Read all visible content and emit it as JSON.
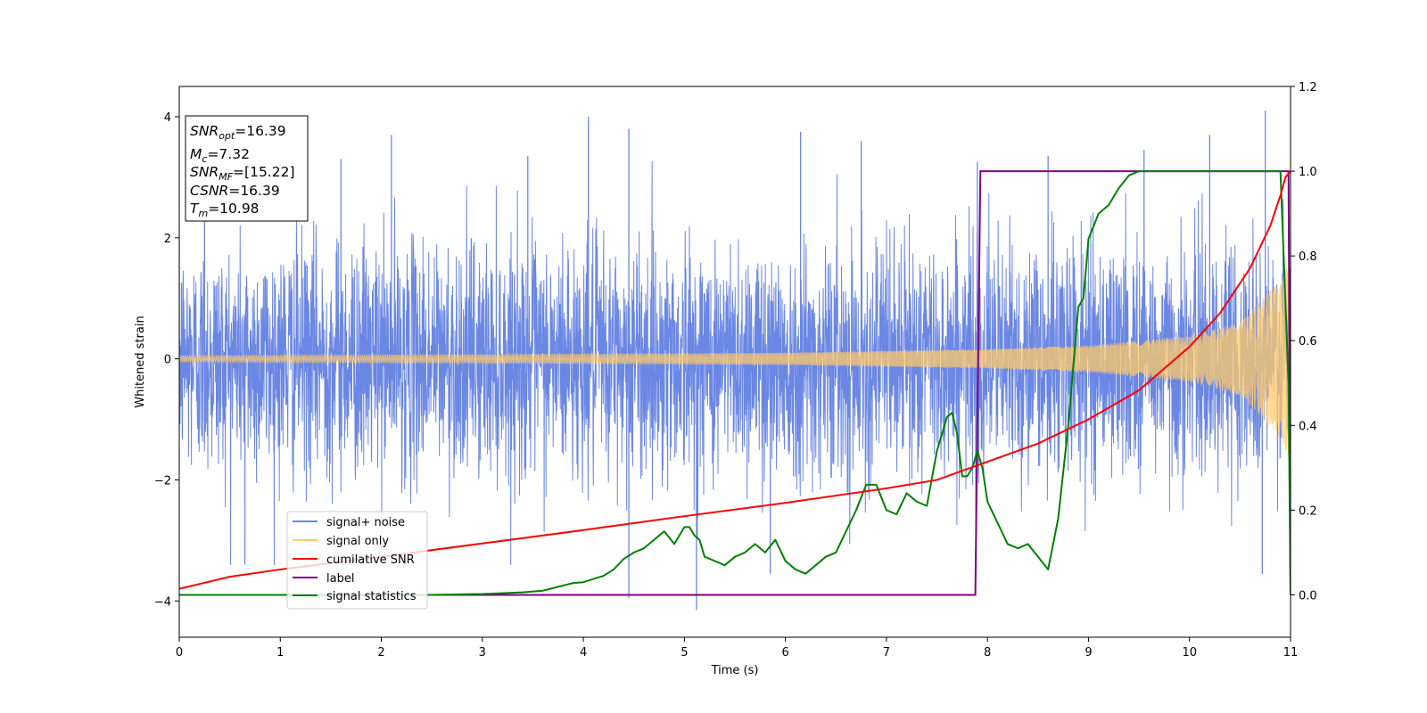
{
  "chart_data": {
    "type": "line",
    "xlabel": "Time (s)",
    "ylabel": "Whitened strain",
    "xlim": [
      0,
      11
    ],
    "ylim_left": [
      -4.6,
      4.5
    ],
    "ylim_right": [
      -0.1,
      1.2
    ],
    "x_ticks": [
      0,
      1,
      2,
      3,
      4,
      5,
      6,
      7,
      8,
      9,
      10,
      11
    ],
    "y_ticks_left": [
      -4,
      -2,
      0,
      2,
      4
    ],
    "y_ticks_left_labels": [
      "−4",
      "−2",
      "0",
      "2",
      "4"
    ],
    "y_ticks_right": [
      0.0,
      0.2,
      0.4,
      0.6,
      0.8,
      1.0,
      1.2
    ],
    "y_ticks_right_labels": [
      "0.0",
      "0.2",
      "0.4",
      "0.6",
      "0.8",
      "1.0",
      "1.2"
    ],
    "grid": false,
    "legend_position": "lower-left",
    "info_box": {
      "snr_opt": {
        "var": "SNR",
        "sub": "opt",
        "value": "=16.39"
      },
      "mc": {
        "var": "M",
        "sub": "c",
        "value": "=7.32"
      },
      "snr_mf": {
        "var": "SNR",
        "sub": "MF",
        "value": "=[15.22]"
      },
      "csnr": {
        "var": "CSNR",
        "sub": "",
        "value": "=16.39"
      },
      "tm": {
        "var": "T",
        "sub": "m",
        "value": "=10.98"
      }
    },
    "series": [
      {
        "name": "signal+ noise",
        "color": "#6b87e4",
        "axis": "left",
        "kind": "noise",
        "description_values": {
          "std": 1.0,
          "min": -4.15,
          "max": 4.1
        },
        "spikes": [
          {
            "x": 0.25,
            "y": 3.2
          },
          {
            "x": 2.1,
            "y": 3.7
          },
          {
            "x": 4.05,
            "y": 4.0
          },
          {
            "x": 4.45,
            "y": 3.8
          },
          {
            "x": 5.12,
            "y": -4.15
          },
          {
            "x": 6.15,
            "y": 3.75
          },
          {
            "x": 6.75,
            "y": 3.6
          },
          {
            "x": 10.2,
            "y": 3.7
          },
          {
            "x": 10.75,
            "y": 4.1
          },
          {
            "x": 10.72,
            "y": -3.55
          },
          {
            "x": 4.45,
            "y": -3.95
          },
          {
            "x": 0.65,
            "y": -3.4
          },
          {
            "x": 5.85,
            "y": -3.55
          },
          {
            "x": 7.9,
            "y": 3.25
          },
          {
            "x": 1.6,
            "y": 3.3
          },
          {
            "x": 8.6,
            "y": 3.35
          },
          {
            "x": 3.45,
            "y": 3.35
          },
          {
            "x": 9.55,
            "y": 3.45
          }
        ]
      },
      {
        "name": "signal only",
        "color": "#ffc96b",
        "axis": "left",
        "kind": "chirp",
        "amplitude_points": [
          {
            "t": 0,
            "a": 0.05
          },
          {
            "t": 4,
            "a": 0.08
          },
          {
            "t": 6,
            "a": 0.1
          },
          {
            "t": 8,
            "a": 0.16
          },
          {
            "t": 9,
            "a": 0.22
          },
          {
            "t": 10,
            "a": 0.38
          },
          {
            "t": 10.5,
            "a": 0.6
          },
          {
            "t": 10.9,
            "a": 1.3
          },
          {
            "t": 10.98,
            "a": 1.6
          }
        ]
      },
      {
        "name": "cumilative SNR",
        "color": "#ff0000",
        "axis": "left",
        "x": [
          0,
          0.5,
          1,
          2,
          3,
          4,
          5,
          6,
          7,
          7.5,
          8,
          8.5,
          9,
          9.5,
          10,
          10.3,
          10.6,
          10.8,
          10.9,
          10.95,
          11
        ],
        "y": [
          -3.8,
          -3.6,
          -3.48,
          -3.27,
          -3.05,
          -2.83,
          -2.6,
          -2.38,
          -2.14,
          -2.0,
          -1.7,
          -1.4,
          -1.0,
          -0.52,
          0.2,
          0.75,
          1.5,
          2.2,
          2.7,
          3.0,
          3.1
        ]
      },
      {
        "name": "label",
        "color": "#800080",
        "axis": "right",
        "x": [
          0,
          7.88,
          7.93,
          10.98,
          10.99,
          11.0
        ],
        "y": [
          0.0,
          0.0,
          1.0,
          1.0,
          0.5,
          0.0
        ]
      },
      {
        "name": "signal statistics",
        "color": "#008000",
        "axis": "right",
        "x": [
          0,
          1,
          2,
          2.5,
          3,
          3.4,
          3.6,
          3.8,
          3.9,
          4.0,
          4.2,
          4.3,
          4.4,
          4.5,
          4.6,
          4.7,
          4.8,
          4.9,
          5.0,
          5.05,
          5.1,
          5.15,
          5.2,
          5.3,
          5.4,
          5.5,
          5.6,
          5.7,
          5.8,
          5.9,
          6.0,
          6.1,
          6.2,
          6.3,
          6.4,
          6.5,
          6.6,
          6.7,
          6.8,
          6.9,
          7.0,
          7.1,
          7.2,
          7.3,
          7.4,
          7.5,
          7.6,
          7.65,
          7.7,
          7.75,
          7.8,
          7.85,
          7.9,
          7.95,
          8.0,
          8.1,
          8.2,
          8.3,
          8.4,
          8.5,
          8.6,
          8.7,
          8.8,
          8.9,
          8.95,
          9.0,
          9.1,
          9.2,
          9.3,
          9.4,
          9.5,
          9.7,
          10.0,
          10.5,
          10.9,
          10.98,
          11.0
        ],
        "y": [
          0.0,
          0.0,
          0.0,
          0.0,
          0.002,
          0.006,
          0.01,
          0.022,
          0.028,
          0.03,
          0.045,
          0.06,
          0.085,
          0.1,
          0.11,
          0.13,
          0.15,
          0.12,
          0.16,
          0.16,
          0.14,
          0.13,
          0.09,
          0.08,
          0.07,
          0.09,
          0.1,
          0.12,
          0.1,
          0.13,
          0.08,
          0.06,
          0.05,
          0.07,
          0.09,
          0.1,
          0.15,
          0.2,
          0.26,
          0.26,
          0.2,
          0.19,
          0.24,
          0.22,
          0.21,
          0.34,
          0.42,
          0.43,
          0.38,
          0.28,
          0.28,
          0.3,
          0.34,
          0.3,
          0.22,
          0.17,
          0.12,
          0.11,
          0.12,
          0.09,
          0.06,
          0.18,
          0.4,
          0.68,
          0.7,
          0.84,
          0.9,
          0.92,
          0.96,
          0.99,
          1.0,
          1.0,
          1.0,
          1.0,
          1.0,
          0.5,
          0.0
        ]
      }
    ]
  }
}
